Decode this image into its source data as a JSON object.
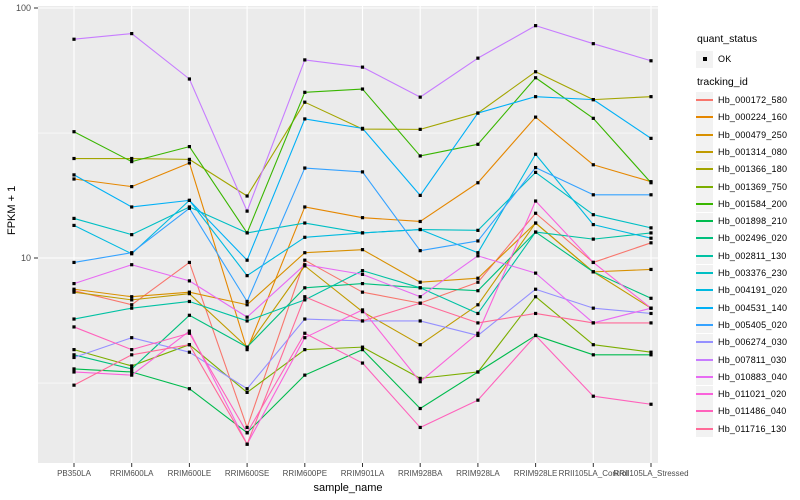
{
  "chart_data": {
    "type": "line",
    "title": "",
    "xlabel": "sample_name",
    "ylabel": "FPKM + 1",
    "y_scale": "log10",
    "ylim": [
      1.5,
      110
    ],
    "y_major_ticks": [
      100,
      10
    ],
    "y_minor_gridlines": [
      31.6,
      3.16
    ],
    "grid": true,
    "legend_position": "right",
    "panel_bg": "#EBEBEB",
    "grid_color": "#FFFFFF",
    "point_color": "#000000",
    "point_shape": "square",
    "categories": [
      "PB350LA",
      "RRIM600LA",
      "RRIM600LE",
      "RRIM600SE",
      "RRIM600PE",
      "RRIM901LA",
      "RRIM928BA",
      "RRIM928LA",
      "RRIM928LE",
      "RRII105LA_Control",
      "RRII105LA_Stressed"
    ],
    "series": [
      {
        "name": "Hb_000172_580",
        "color": "#F8766D",
        "values": [
          7.4,
          6.5,
          9.6,
          2.1,
          9.8,
          7.3,
          6.6,
          8.0,
          15.1,
          9.6,
          11.5
        ]
      },
      {
        "name": "Hb_000224_160",
        "color": "#E58700",
        "values": [
          20.7,
          19.3,
          24.0,
          4.3,
          16.0,
          14.5,
          14.0,
          20.0,
          36.6,
          23.6,
          20.2
        ]
      },
      {
        "name": "Hb_000479_250",
        "color": "#D89000",
        "values": [
          7.5,
          7.0,
          7.3,
          6.5,
          10.5,
          10.8,
          8.0,
          8.3,
          13.8,
          8.8,
          9.0
        ]
      },
      {
        "name": "Hb_001314_080",
        "color": "#C09B00",
        "values": [
          7.3,
          6.8,
          7.2,
          4.4,
          9.3,
          6.1,
          4.5,
          6.5,
          13.8,
          8.8,
          6.3
        ]
      },
      {
        "name": "Hb_001366_180",
        "color": "#A3A500",
        "values": [
          25.0,
          25.0,
          24.8,
          17.7,
          42.0,
          32.8,
          32.7,
          38.0,
          55.6,
          43.0,
          44.2
        ]
      },
      {
        "name": "Hb_001369_750",
        "color": "#7CAE00",
        "values": [
          4.3,
          3.7,
          4.5,
          2.9,
          4.3,
          4.4,
          3.3,
          3.5,
          7.0,
          4.5,
          4.2
        ]
      },
      {
        "name": "Hb_001584_200",
        "color": "#39B600",
        "values": [
          32.0,
          24.3,
          27.9,
          12.6,
          46.0,
          47.4,
          25.6,
          28.5,
          52.6,
          36.2,
          20.0
        ]
      },
      {
        "name": "Hb_001898_210",
        "color": "#00BB4E",
        "values": [
          3.6,
          3.5,
          3.0,
          2.0,
          3.4,
          4.3,
          2.5,
          3.5,
          4.9,
          4.1,
          4.1
        ]
      },
      {
        "name": "Hb_002496_020",
        "color": "#00BF7D",
        "values": [
          4.1,
          3.6,
          5.9,
          4.4,
          7.6,
          7.9,
          7.6,
          7.4,
          12.7,
          8.8,
          6.9
        ]
      },
      {
        "name": "Hb_002811_130",
        "color": "#00C1A3",
        "values": [
          5.7,
          6.3,
          6.7,
          5.6,
          6.8,
          8.9,
          7.6,
          6.0,
          12.7,
          11.9,
          12.6
        ]
      },
      {
        "name": "Hb_003376_230",
        "color": "#00BFC4",
        "values": [
          14.4,
          12.4,
          16.0,
          12.6,
          13.8,
          12.6,
          13.0,
          12.9,
          22.0,
          14.9,
          13.2
        ]
      },
      {
        "name": "Hb_004191_020",
        "color": "#00BAE0",
        "values": [
          13.5,
          10.4,
          17.0,
          8.5,
          12.1,
          12.6,
          13.0,
          10.5,
          26.0,
          13.6,
          12.0
        ]
      },
      {
        "name": "Hb_004531_140",
        "color": "#00B0F6",
        "values": [
          21.5,
          16.0,
          17.0,
          9.8,
          36.0,
          33.0,
          17.8,
          38.0,
          44.2,
          43.0,
          30.1
        ]
      },
      {
        "name": "Hb_005405_020",
        "color": "#35A2FF",
        "values": [
          9.6,
          10.5,
          15.8,
          6.7,
          22.9,
          22.1,
          10.7,
          11.7,
          23.0,
          17.9,
          17.9
        ]
      },
      {
        "name": "Hb_006274_030",
        "color": "#9590FF",
        "values": [
          4.0,
          4.8,
          4.2,
          3.0,
          5.7,
          5.6,
          5.6,
          4.9,
          7.5,
          6.3,
          6.0
        ]
      },
      {
        "name": "Hb_007811_030",
        "color": "#C77CFF",
        "values": [
          75.0,
          79.0,
          52.0,
          15.4,
          62.0,
          58.0,
          44.0,
          63.0,
          85.0,
          72.0,
          61.5
        ]
      },
      {
        "name": "Hb_010883_040",
        "color": "#E76BF3",
        "values": [
          7.9,
          9.4,
          8.1,
          5.8,
          9.4,
          8.6,
          7.0,
          10.2,
          8.7,
          5.5,
          6.3
        ]
      },
      {
        "name": "Hb_011021_020",
        "color": "#FA62DB",
        "values": [
          3.5,
          3.4,
          5.1,
          1.8,
          4.8,
          6.2,
          3.2,
          5.0,
          16.9,
          9.6,
          6.3
        ]
      },
      {
        "name": "Hb_011486_040",
        "color": "#FF62BC",
        "values": [
          5.3,
          4.3,
          5.0,
          2.0,
          5.0,
          3.8,
          2.1,
          2.7,
          4.9,
          2.8,
          2.6
        ]
      },
      {
        "name": "Hb_011716_130",
        "color": "#FF6A98",
        "values": [
          3.1,
          4.1,
          4.5,
          1.8,
          7.0,
          5.6,
          6.6,
          5.5,
          6.0,
          5.5,
          5.5
        ]
      }
    ]
  },
  "legend": {
    "quant_status": {
      "title": "quant_status",
      "items": [
        {
          "label": "OK",
          "symbol": "point"
        }
      ]
    },
    "tracking_id": {
      "title": "tracking_id"
    }
  }
}
